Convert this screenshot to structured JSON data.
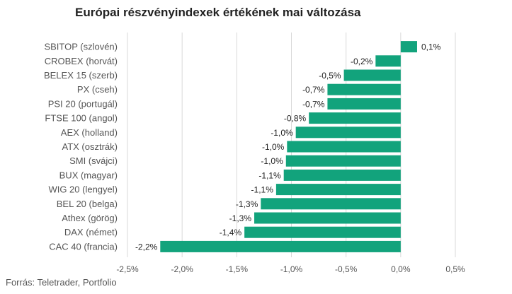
{
  "chart_data": {
    "type": "bar",
    "orientation": "horizontal",
    "title": "Európai részvényindexek értékének mai változása",
    "source": "Forrás: Teletrader, Portfolio",
    "categories": [
      "SBITOP (szlovén)",
      "CROBEX (horvát)",
      "BELEX 15 (szerb)",
      "PX (cseh)",
      "PSI 20 (portugál)",
      "FTSE 100 (angol)",
      "AEX (holland)",
      "ATX (osztrák)",
      "SMI (svájci)",
      "BUX (magyar)",
      "WIG 20 (lengyel)",
      "BEL 20 (belga)",
      "Athex (görög)",
      "DAX (német)",
      "CAC 40 (francia)"
    ],
    "values": [
      0.15,
      -0.23,
      -0.52,
      -0.67,
      -0.67,
      -0.84,
      -0.96,
      -1.04,
      -1.05,
      -1.07,
      -1.14,
      -1.28,
      -1.34,
      -1.43,
      -2.2
    ],
    "value_labels": [
      "0,1%",
      "-0,2%",
      "-0,5%",
      "-0,7%",
      "-0,7%",
      "-0,8%",
      "-1,0%",
      "-1,0%",
      "-1,0%",
      "-1,1%",
      "-1,1%",
      "-1,3%",
      "-1,3%",
      "-1,4%",
      "-2,2%"
    ],
    "xlim": [
      -2.5,
      0.5
    ],
    "ticks": [
      -2.5,
      -2.0,
      -1.5,
      -1.0,
      -0.5,
      0.0,
      0.5
    ],
    "tick_labels": [
      "-2,5%",
      "-2,0%",
      "-1,5%",
      "-1,0%",
      "-0,5%",
      "0,0%",
      "0,5%"
    ],
    "grid": true,
    "color": "#12a37c",
    "xlabel": "",
    "ylabel": ""
  }
}
